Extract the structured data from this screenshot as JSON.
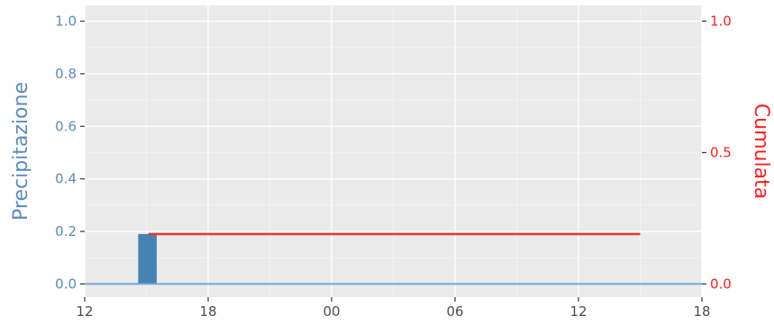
{
  "chart_data": {
    "type": "bar+line",
    "title": "",
    "xlabel": "",
    "x_ticks": [
      "12",
      "18",
      "00",
      "06",
      "12",
      "18"
    ],
    "x_range_hours": [
      0,
      30
    ],
    "left_axis": {
      "label": "Precipitazione",
      "color": "#5b8cc0",
      "ylim": [
        0,
        1.0
      ],
      "ticks": [
        "0.0",
        "0.2",
        "0.4",
        "0.6",
        "0.8",
        "1.0"
      ]
    },
    "right_axis": {
      "label": "Cumulata",
      "color": "#ff2020",
      "ylim": [
        0,
        1.0
      ],
      "ticks": [
        "0.0",
        "0.5",
        "1.0"
      ]
    },
    "bars": {
      "color": "#4682b4",
      "points": [
        {
          "x_start": 2.6,
          "x_end": 3.5,
          "value": 0.19
        }
      ]
    },
    "baseline": {
      "color": "#6fa8dc",
      "value": 0.0
    },
    "cumulative_line": {
      "color": "#ee3333",
      "points": [
        {
          "x": 3.1,
          "y": 0.19
        },
        {
          "x": 27.0,
          "y": 0.19
        }
      ]
    },
    "grid": true,
    "panel_background": "#ebebeb"
  }
}
